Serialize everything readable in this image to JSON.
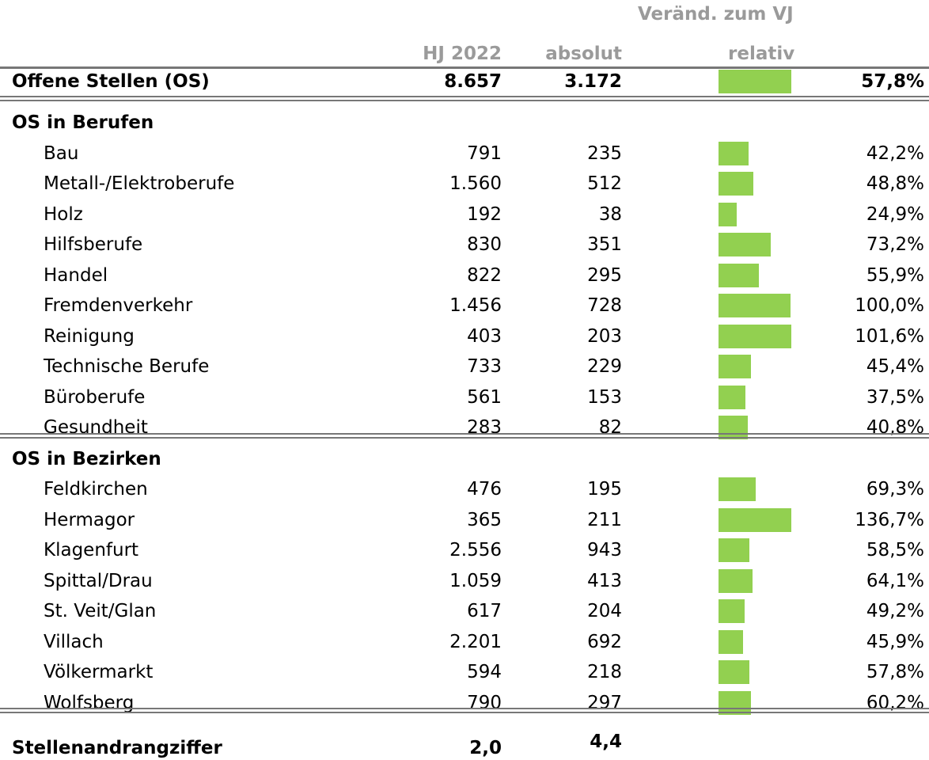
{
  "header": {
    "group": "Veränd. zum VJ",
    "columns": [
      "HJ 2022",
      "absolut",
      "relativ"
    ]
  },
  "total": {
    "label": "Offene Stellen (OS)",
    "hj": "8.657",
    "absolut": "3.172",
    "relativ": 57.8,
    "relativ_label": "57,8%"
  },
  "sections": [
    {
      "title": "OS in Berufen",
      "rows": [
        {
          "label": "Bau",
          "hj": "791",
          "absolut": "235",
          "relativ": 42.2,
          "relativ_label": "42,2%"
        },
        {
          "label": "Metall-/Elektroberufe",
          "hj": "1.560",
          "absolut": "512",
          "relativ": 48.8,
          "relativ_label": "48,8%"
        },
        {
          "label": "Holz",
          "hj": "192",
          "absolut": "38",
          "relativ": 24.9,
          "relativ_label": "24,9%"
        },
        {
          "label": "Hilfsberufe",
          "hj": "830",
          "absolut": "351",
          "relativ": 73.2,
          "relativ_label": "73,2%"
        },
        {
          "label": "Handel",
          "hj": "822",
          "absolut": "295",
          "relativ": 55.9,
          "relativ_label": "55,9%"
        },
        {
          "label": "Fremdenverkehr",
          "hj": "1.456",
          "absolut": "728",
          "relativ": 100.0,
          "relativ_label": "100,0%"
        },
        {
          "label": "Reinigung",
          "hj": "403",
          "absolut": "203",
          "relativ": 101.6,
          "relativ_label": "101,6%"
        },
        {
          "label": "Technische Berufe",
          "hj": "733",
          "absolut": "229",
          "relativ": 45.4,
          "relativ_label": "45,4%"
        },
        {
          "label": "Büroberufe",
          "hj": "561",
          "absolut": "153",
          "relativ": 37.5,
          "relativ_label": "37,5%"
        },
        {
          "label": "Gesundheit",
          "hj": "283",
          "absolut": "82",
          "relativ": 40.8,
          "relativ_label": "40,8%"
        }
      ]
    },
    {
      "title": "OS in Bezirken",
      "rows": [
        {
          "label": "Feldkirchen",
          "hj": "476",
          "absolut": "195",
          "relativ": 69.3,
          "relativ_label": "69,3%"
        },
        {
          "label": "Hermagor",
          "hj": "365",
          "absolut": "211",
          "relativ": 136.7,
          "relativ_label": "136,7%"
        },
        {
          "label": "Klagenfurt",
          "hj": "2.556",
          "absolut": "943",
          "relativ": 58.5,
          "relativ_label": "58,5%"
        },
        {
          "label": "Spittal/Drau",
          "hj": "1.059",
          "absolut": "413",
          "relativ": 64.1,
          "relativ_label": "64,1%"
        },
        {
          "label": "St. Veit/Glan",
          "hj": "617",
          "absolut": "204",
          "relativ": 49.2,
          "relativ_label": "49,2%"
        },
        {
          "label": "Villach",
          "hj": "2.201",
          "absolut": "692",
          "relativ": 45.9,
          "relativ_label": "45,9%"
        },
        {
          "label": "Völkermarkt",
          "hj": "594",
          "absolut": "218",
          "relativ": 57.8,
          "relativ_label": "57,8%"
        },
        {
          "label": "Wolfsberg",
          "hj": "790",
          "absolut": "297",
          "relativ": 60.2,
          "relativ_label": "60,2%"
        }
      ]
    }
  ],
  "footer": {
    "label": "Stellenandrangziffer",
    "hj": "2,0",
    "absolut": "4,4"
  }
}
